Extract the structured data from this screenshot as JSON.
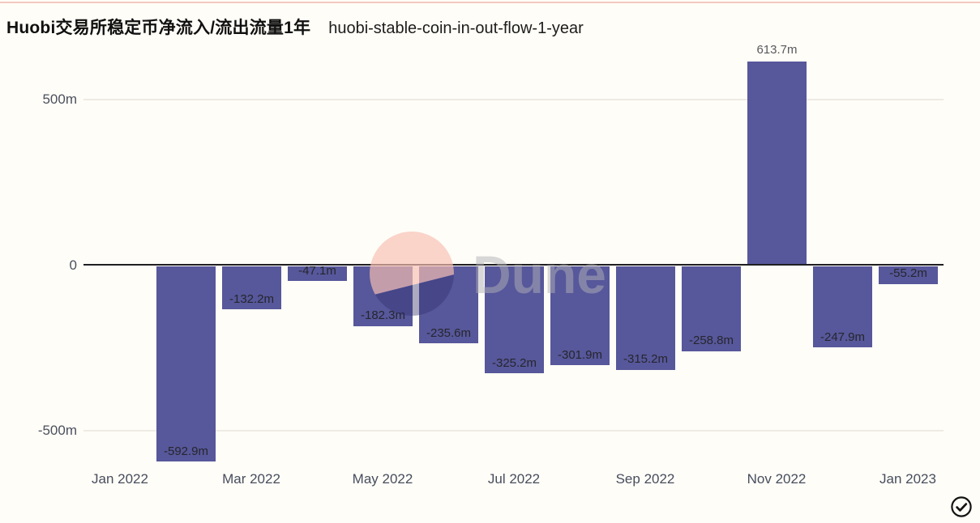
{
  "page": {
    "background": "#fffdf7",
    "top_border_color": "#f2c8c0"
  },
  "header": {
    "title": "Huobi交易所稳定币净流入/流出流量1年",
    "subtitle": "huobi-stable-coin-in-out-flow-1-year"
  },
  "chart_data": {
    "type": "bar",
    "title": "Huobi交易所稳定币净流入/流出流量1年",
    "subtitle": "huobi-stable-coin-in-out-flow-1-year",
    "unit": "m (millions)",
    "bar_color": "#57579B",
    "categories": [
      "Feb 2022",
      "Mar 2022",
      "Apr 2022",
      "May 2022",
      "Jun 2022",
      "Jul 2022",
      "Aug 2022",
      "Sep 2022",
      "Oct 2022",
      "Nov 2022",
      "Dec 2022",
      "Jan 2023"
    ],
    "values": [
      -592.9,
      -132.2,
      -47.1,
      -182.3,
      -235.6,
      -325.2,
      -301.9,
      -315.2,
      -258.8,
      613.7,
      -247.9,
      -55.2
    ],
    "value_labels": [
      "-592.9m",
      "-132.2m",
      "-47.1m",
      "-182.3m",
      "-235.6m",
      "-325.2m",
      "-301.9m",
      "-315.2m",
      "-258.8m",
      "613.7m",
      "-247.9m",
      "-55.2m"
    ],
    "x_tick_labels": [
      "Jan 2022",
      "Mar 2022",
      "May 2022",
      "Jul 2022",
      "Sep 2022",
      "Nov 2022",
      "Jan 2023"
    ],
    "y_ticks": [
      {
        "label": "500m",
        "value": 500
      },
      {
        "label": "0",
        "value": 0
      },
      {
        "label": "-500m",
        "value": -500
      }
    ],
    "gridline_values": [
      500,
      -500
    ],
    "ylim": [
      -660,
      700
    ],
    "grid": "horizontal",
    "legend": false
  },
  "watermark": {
    "text": "Dune"
  },
  "icons": {
    "verified_check": "circled checkmark"
  }
}
